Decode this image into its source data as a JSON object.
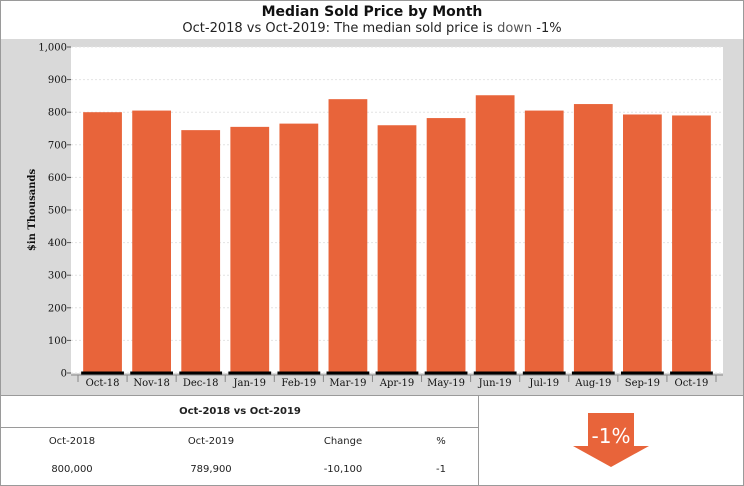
{
  "header": {
    "title": "Median Sold Price by Month",
    "subtitle_prefix": "Oct-2018 vs Oct-2019: The median sold price is ",
    "subtitle_direction": "down",
    "subtitle_value": " -1%"
  },
  "colors": {
    "bar": "#E8643A",
    "plot_background": "#ffffff",
    "outer_background": "#d9d9d9",
    "arrow": "#E8643A"
  },
  "chart_data": {
    "type": "bar",
    "ylabel": "$in Thousands",
    "ylim": [
      0,
      1000
    ],
    "yticks": [
      "0",
      "100",
      "200",
      "300",
      "400",
      "500",
      "600",
      "700",
      "800",
      "900",
      "1,000"
    ],
    "categories": [
      "Oct-18",
      "Nov-18",
      "Dec-18",
      "Jan-19",
      "Feb-19",
      "Mar-19",
      "Apr-19",
      "May-19",
      "Jun-19",
      "Jul-19",
      "Aug-19",
      "Sep-19",
      "Oct-19"
    ],
    "values": [
      800,
      805,
      745,
      755,
      765,
      840,
      760,
      782,
      852,
      805,
      825,
      793,
      790
    ],
    "grid": true
  },
  "comparison": {
    "title": "Oct-2018 vs Oct-2019",
    "headers": [
      "Oct-2018",
      "Oct-2019",
      "Change",
      "%"
    ],
    "values": [
      "800,000",
      "789,900",
      "-10,100",
      "-1"
    ]
  },
  "indicator": {
    "label": "-1%",
    "direction": "down-arrow-icon"
  }
}
